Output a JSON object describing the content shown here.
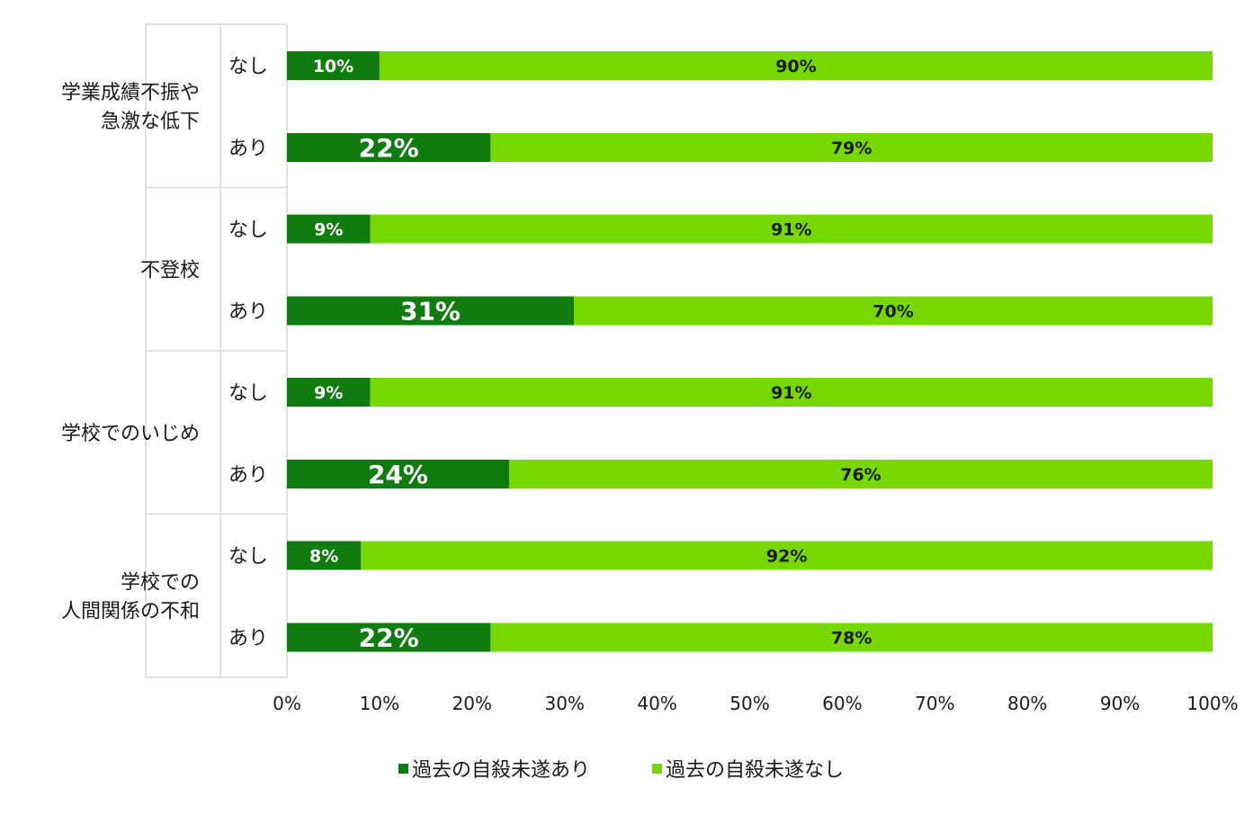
{
  "chart_data": {
    "type": "bar",
    "orientation": "horizontal",
    "stacked": true,
    "percent": true,
    "groups": [
      {
        "label_lines": [
          "学業成績不振や",
          "急激な低下"
        ],
        "rows": [
          {
            "label": "なし",
            "values": [
              10,
              90
            ],
            "value_labels": [
              "10%",
              "90%"
            ]
          },
          {
            "label": "あり",
            "values": [
              22,
              79
            ],
            "value_labels": [
              "22%",
              "79%"
            ]
          }
        ]
      },
      {
        "label_lines": [
          "不登校"
        ],
        "rows": [
          {
            "label": "なし",
            "values": [
              9,
              91
            ],
            "value_labels": [
              "9%",
              "91%"
            ]
          },
          {
            "label": "あり",
            "values": [
              31,
              70
            ],
            "value_labels": [
              "31%",
              "70%"
            ]
          }
        ]
      },
      {
        "label_lines": [
          "学校でのいじめ"
        ],
        "rows": [
          {
            "label": "なし",
            "values": [
              9,
              91
            ],
            "value_labels": [
              "9%",
              "91%"
            ]
          },
          {
            "label": "あり",
            "values": [
              24,
              76
            ],
            "value_labels": [
              "24%",
              "76%"
            ]
          }
        ]
      },
      {
        "label_lines": [
          "学校での",
          "人間関係の不和"
        ],
        "rows": [
          {
            "label": "なし",
            "values": [
              8,
              92
            ],
            "value_labels": [
              "8%",
              "92%"
            ]
          },
          {
            "label": "あり",
            "values": [
              22,
              78
            ],
            "value_labels": [
              "22%",
              "78%"
            ]
          }
        ]
      }
    ],
    "series": [
      {
        "name": "過去の自殺未遂あり",
        "color": "#107c10"
      },
      {
        "name": "過去の自殺未遂なし",
        "color": "#77d800"
      }
    ],
    "xlim": [
      0,
      100
    ],
    "x_ticks": [
      "0%",
      "10%",
      "20%",
      "30%",
      "40%",
      "50%",
      "60%",
      "70%",
      "80%",
      "90%",
      "100%"
    ],
    "grid": false,
    "legend_position": "bottom"
  }
}
